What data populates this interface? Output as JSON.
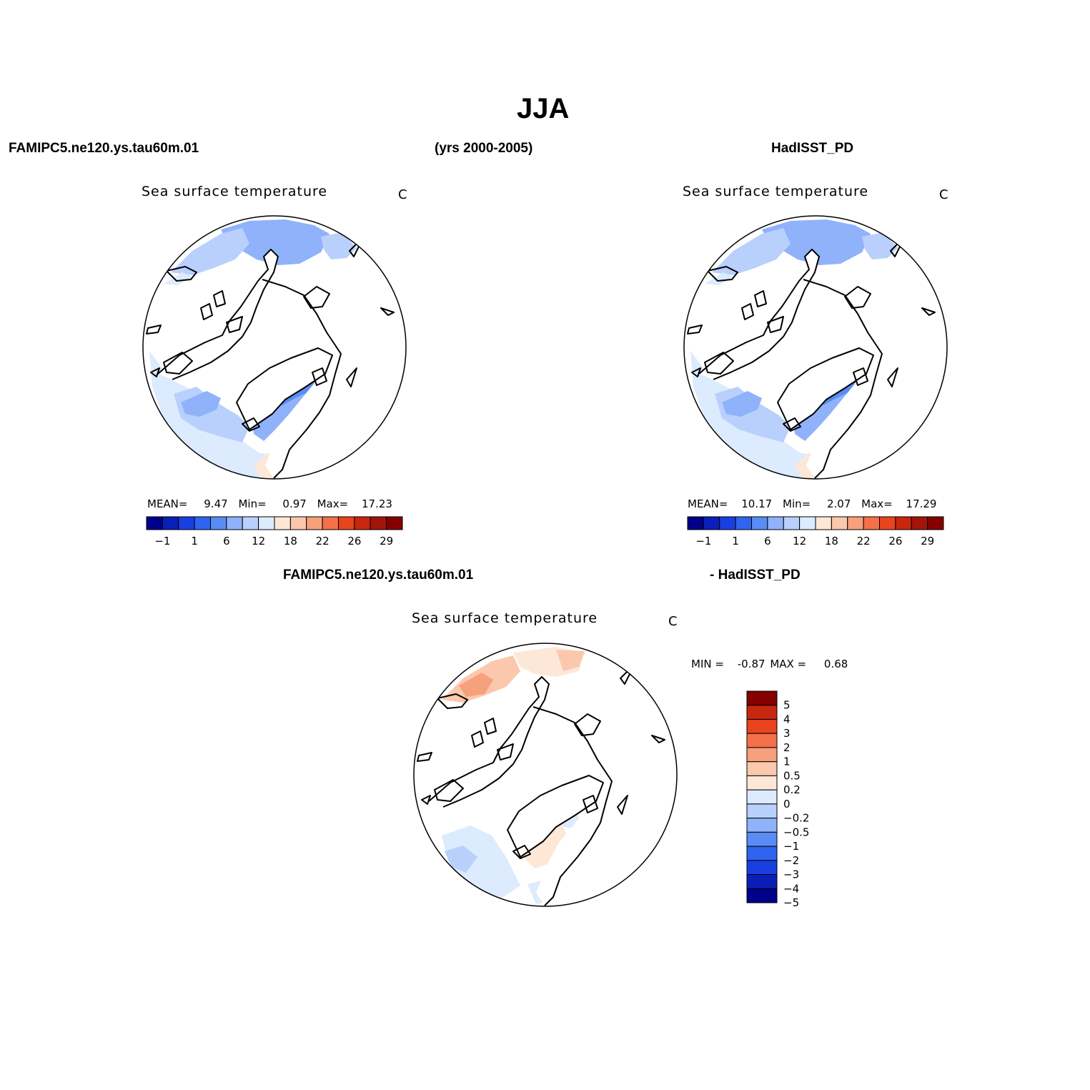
{
  "season_title": "JJA",
  "header": {
    "left": "FAMIPC5.ne120.ys.tau60m.01",
    "center": "(yrs 2000-2005)",
    "right": "HadISST_PD",
    "diff_left": "FAMIPC5.ne120.ys.tau60m.01",
    "diff_right": "- HadISST_PD"
  },
  "colors": {
    "mean_palette": [
      "#00008b",
      "#0a1fb8",
      "#1a3fe0",
      "#2f64f0",
      "#5a8cf5",
      "#8fb2fa",
      "#b9d0fc",
      "#dcebfd",
      "#fde8d8",
      "#fcc8ad",
      "#f7a07c",
      "#f47048",
      "#e8441e",
      "#c8260e",
      "#a3150a",
      "#850000"
    ],
    "diff_palette": [
      "#00008b",
      "#0a1fb8",
      "#1a3fe0",
      "#2f64f0",
      "#5a8cf5",
      "#8fb2fa",
      "#b9d0fc",
      "#dcebfd",
      "#fde8d8",
      "#fcc8ad",
      "#f7a07c",
      "#f47048",
      "#e8441e",
      "#c8260e",
      "#850000"
    ]
  },
  "chart_data": [
    {
      "type": "heatmap",
      "projection": "north polar stereographic",
      "title": "Sea surface temperature",
      "units": "C",
      "dataset": "FAMIPC5.ne120.ys.tau60m.01",
      "stats": {
        "mean_label": "MEAN=",
        "mean": "9.47",
        "min_label": "Min=",
        "min": "0.97",
        "max_label": "Max=",
        "max": "17.23"
      },
      "colorbar_ticks": [
        "-1",
        "1",
        "6",
        "12",
        "18",
        "22",
        "26",
        "29"
      ]
    },
    {
      "type": "heatmap",
      "projection": "north polar stereographic",
      "title": "Sea surface temperature",
      "units": "C",
      "dataset": "HadISST_PD",
      "stats": {
        "mean_label": "MEAN=",
        "mean": "10.17",
        "min_label": "Min=",
        "min": "2.07",
        "max_label": "Max=",
        "max": "17.29"
      },
      "colorbar_ticks": [
        "-1",
        "1",
        "6",
        "12",
        "18",
        "22",
        "26",
        "29"
      ]
    },
    {
      "type": "heatmap",
      "projection": "north polar stereographic",
      "title": "Sea surface temperature",
      "units": "C",
      "dataset": "FAMIPC5.ne120.ys.tau60m.01 - HadISST_PD",
      "stats": {
        "min_label": "MIN =",
        "min": "-0.87",
        "max_label": "MAX =",
        "max": "0.68"
      },
      "colorbar_levels": [
        "5",
        "4",
        "3",
        "2",
        "1",
        "0.5",
        "0.2",
        "0",
        "-0.2",
        "-0.5",
        "-1",
        "-2",
        "-3",
        "-4",
        "-5"
      ]
    }
  ]
}
